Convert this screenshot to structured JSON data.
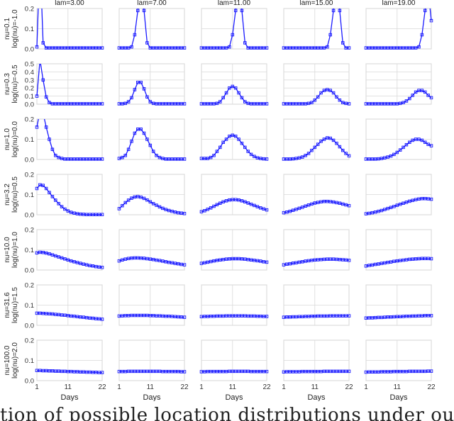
{
  "figure": {
    "caption_fragment": "tion of possible location distributions under our proposed treat",
    "xlabel": "Days",
    "xticks": [
      1,
      11,
      22
    ],
    "columns": [
      "lam=3.00",
      "lam=7.00",
      "lam=11.00",
      "lam=15.00",
      "lam=19.00"
    ],
    "rows": [
      {
        "nu_label": "nu=0.1",
        "lognu_label": "log(nu)=-1.0"
      },
      {
        "nu_label": "nu=0.3",
        "lognu_label": "log(nu)=-0.5"
      },
      {
        "nu_label": "nu=1.0",
        "lognu_label": "log(nu)=0.0"
      },
      {
        "nu_label": "nu=3.2",
        "lognu_label": "log(nu)=0.5"
      },
      {
        "nu_label": "nu=10.0",
        "lognu_label": "log(nu)=1.0"
      },
      {
        "nu_label": "nu=31.6",
        "lognu_label": "log(nu)=1.5"
      },
      {
        "nu_label": "nu=100.0",
        "lognu_label": "log(nu)=2.0"
      }
    ],
    "series_color": "#1a1aff",
    "grid_color": "#d9d9d9"
  },
  "chart_data": {
    "type": "line",
    "layout": "small multiples grid, 7 rows (nu) x 5 columns (lam)",
    "x": [
      1,
      2,
      3,
      4,
      5,
      6,
      7,
      8,
      9,
      10,
      11,
      12,
      13,
      14,
      15,
      16,
      17,
      18,
      19,
      20,
      21,
      22
    ],
    "xlim": [
      1,
      22
    ],
    "rows": [
      {
        "ylim": [
          0,
          0.2
        ],
        "yticks": [
          0.0,
          0.1,
          0.2
        ]
      },
      {
        "ylim": [
          0,
          0.5
        ],
        "yticks": [
          0.0,
          0.1,
          0.2,
          0.3,
          0.4,
          0.5
        ]
      },
      {
        "ylim": [
          0,
          0.2
        ],
        "yticks": [
          0.0,
          0.1,
          0.2
        ]
      },
      {
        "ylim": [
          0,
          0.2
        ],
        "yticks": [
          0.0,
          0.1,
          0.2
        ]
      },
      {
        "ylim": [
          0,
          0.2
        ],
        "yticks": [
          0.0,
          0.1,
          0.2
        ]
      },
      {
        "ylim": [
          0,
          0.2
        ],
        "yticks": [
          0.0,
          0.1,
          0.2
        ]
      },
      {
        "ylim": [
          0,
          0.2
        ],
        "yticks": [
          0.0,
          0.1,
          0.2
        ]
      }
    ],
    "panels": [
      [
        [
          0.01,
          0.45,
          0.03,
          0.005,
          0.005,
          0.005,
          0.005,
          0.005,
          0.005,
          0.005,
          0.005,
          0.005,
          0.005,
          0.005,
          0.005,
          0.005,
          0.005,
          0.005,
          0.005,
          0.005,
          0.005,
          0.005
        ],
        [
          0.005,
          0.005,
          0.005,
          0.005,
          0.01,
          0.07,
          0.19,
          0.35,
          0.19,
          0.03,
          0.005,
          0.005,
          0.005,
          0.005,
          0.005,
          0.005,
          0.005,
          0.005,
          0.005,
          0.005,
          0.005,
          0.005
        ],
        [
          0.005,
          0.005,
          0.005,
          0.005,
          0.005,
          0.005,
          0.005,
          0.005,
          0.005,
          0.01,
          0.07,
          0.19,
          0.35,
          0.19,
          0.03,
          0.005,
          0.005,
          0.005,
          0.005,
          0.005,
          0.005,
          0.005
        ],
        [
          0.005,
          0.005,
          0.005,
          0.005,
          0.005,
          0.005,
          0.005,
          0.005,
          0.005,
          0.005,
          0.005,
          0.005,
          0.005,
          0.005,
          0.01,
          0.07,
          0.19,
          0.35,
          0.19,
          0.03,
          0.005,
          0.005
        ],
        [
          0.005,
          0.005,
          0.005,
          0.005,
          0.005,
          0.005,
          0.005,
          0.005,
          0.005,
          0.005,
          0.005,
          0.005,
          0.005,
          0.005,
          0.005,
          0.005,
          0.005,
          0.01,
          0.07,
          0.19,
          0.29,
          0.14
        ]
      ],
      [
        [
          0.1,
          0.55,
          0.3,
          0.09,
          0.02,
          0.005,
          0.005,
          0.005,
          0.005,
          0.005,
          0.005,
          0.005,
          0.005,
          0.005,
          0.005,
          0.005,
          0.005,
          0.005,
          0.005,
          0.005,
          0.005,
          0.005
        ],
        [
          0.005,
          0.005,
          0.01,
          0.03,
          0.08,
          0.18,
          0.27,
          0.27,
          0.19,
          0.09,
          0.03,
          0.01,
          0.005,
          0.005,
          0.005,
          0.005,
          0.005,
          0.005,
          0.005,
          0.005,
          0.005,
          0.005
        ],
        [
          0.005,
          0.005,
          0.005,
          0.005,
          0.005,
          0.01,
          0.03,
          0.08,
          0.14,
          0.2,
          0.22,
          0.2,
          0.14,
          0.08,
          0.03,
          0.01,
          0.005,
          0.005,
          0.005,
          0.005,
          0.005,
          0.005
        ],
        [
          0.005,
          0.005,
          0.005,
          0.005,
          0.005,
          0.005,
          0.005,
          0.005,
          0.01,
          0.02,
          0.05,
          0.09,
          0.14,
          0.17,
          0.18,
          0.17,
          0.14,
          0.09,
          0.05,
          0.02,
          0.01,
          0.005
        ],
        [
          0.005,
          0.005,
          0.005,
          0.005,
          0.005,
          0.005,
          0.005,
          0.005,
          0.005,
          0.005,
          0.005,
          0.01,
          0.02,
          0.04,
          0.07,
          0.11,
          0.15,
          0.17,
          0.17,
          0.15,
          0.11,
          0.08
        ]
      ],
      [
        [
          0.16,
          0.24,
          0.23,
          0.16,
          0.1,
          0.05,
          0.02,
          0.01,
          0.005,
          0.002,
          0.002,
          0.002,
          0.002,
          0.002,
          0.002,
          0.002,
          0.002,
          0.002,
          0.002,
          0.002,
          0.002,
          0.002
        ],
        [
          0.005,
          0.01,
          0.02,
          0.05,
          0.09,
          0.13,
          0.15,
          0.15,
          0.13,
          0.1,
          0.07,
          0.04,
          0.02,
          0.01,
          0.005,
          0.002,
          0.002,
          0.002,
          0.002,
          0.002,
          0.002,
          0.002
        ],
        [
          0.005,
          0.005,
          0.005,
          0.01,
          0.02,
          0.04,
          0.06,
          0.085,
          0.1,
          0.115,
          0.12,
          0.115,
          0.1,
          0.08,
          0.06,
          0.04,
          0.025,
          0.015,
          0.008,
          0.005,
          0.003,
          0.002
        ],
        [
          0.002,
          0.002,
          0.002,
          0.003,
          0.005,
          0.008,
          0.012,
          0.02,
          0.03,
          0.045,
          0.06,
          0.075,
          0.09,
          0.1,
          0.107,
          0.105,
          0.095,
          0.08,
          0.063,
          0.045,
          0.03,
          0.018
        ],
        [
          0.002,
          0.002,
          0.002,
          0.002,
          0.003,
          0.005,
          0.008,
          0.012,
          0.017,
          0.025,
          0.035,
          0.047,
          0.06,
          0.073,
          0.085,
          0.095,
          0.1,
          0.1,
          0.095,
          0.085,
          0.075,
          0.068
        ]
      ],
      [
        [
          0.13,
          0.148,
          0.145,
          0.13,
          0.11,
          0.09,
          0.072,
          0.055,
          0.04,
          0.028,
          0.019,
          0.012,
          0.008,
          0.005,
          0.003,
          0.002,
          0.001,
          0.001,
          0.001,
          0.001,
          0.001,
          0.001
        ],
        [
          0.03,
          0.045,
          0.06,
          0.072,
          0.082,
          0.088,
          0.09,
          0.087,
          0.081,
          0.073,
          0.064,
          0.055,
          0.047,
          0.039,
          0.032,
          0.026,
          0.021,
          0.017,
          0.013,
          0.01,
          0.008,
          0.006
        ],
        [
          0.015,
          0.02,
          0.027,
          0.034,
          0.042,
          0.05,
          0.057,
          0.064,
          0.069,
          0.073,
          0.075,
          0.075,
          0.073,
          0.069,
          0.064,
          0.058,
          0.052,
          0.046,
          0.04,
          0.034,
          0.029,
          0.024
        ],
        [
          0.01,
          0.013,
          0.017,
          0.022,
          0.027,
          0.032,
          0.037,
          0.043,
          0.048,
          0.053,
          0.058,
          0.061,
          0.064,
          0.066,
          0.066,
          0.065,
          0.063,
          0.06,
          0.057,
          0.053,
          0.049,
          0.045
        ],
        [
          0.005,
          0.007,
          0.01,
          0.013,
          0.017,
          0.021,
          0.026,
          0.031,
          0.036,
          0.041,
          0.047,
          0.052,
          0.057,
          0.062,
          0.067,
          0.071,
          0.075,
          0.078,
          0.08,
          0.08,
          0.079,
          0.077
        ]
      ],
      [
        [
          0.085,
          0.088,
          0.087,
          0.084,
          0.08,
          0.075,
          0.07,
          0.065,
          0.06,
          0.055,
          0.05,
          0.045,
          0.041,
          0.037,
          0.033,
          0.029,
          0.026,
          0.022,
          0.02,
          0.017,
          0.015,
          0.013
        ],
        [
          0.045,
          0.05,
          0.054,
          0.057,
          0.059,
          0.06,
          0.06,
          0.059,
          0.058,
          0.056,
          0.054,
          0.052,
          0.049,
          0.047,
          0.044,
          0.041,
          0.038,
          0.036,
          0.033,
          0.031,
          0.028,
          0.026
        ],
        [
          0.033,
          0.036,
          0.039,
          0.042,
          0.045,
          0.048,
          0.05,
          0.052,
          0.054,
          0.055,
          0.056,
          0.056,
          0.056,
          0.055,
          0.054,
          0.052,
          0.05,
          0.048,
          0.046,
          0.044,
          0.041,
          0.039
        ],
        [
          0.026,
          0.029,
          0.031,
          0.034,
          0.036,
          0.039,
          0.041,
          0.044,
          0.046,
          0.048,
          0.05,
          0.051,
          0.052,
          0.053,
          0.054,
          0.054,
          0.054,
          0.053,
          0.052,
          0.051,
          0.05,
          0.048
        ],
        [
          0.02,
          0.023,
          0.025,
          0.028,
          0.03,
          0.033,
          0.035,
          0.038,
          0.04,
          0.043,
          0.045,
          0.047,
          0.049,
          0.051,
          0.053,
          0.054,
          0.055,
          0.056,
          0.057,
          0.057,
          0.057,
          0.056
        ]
      ],
      [
        [
          0.06,
          0.06,
          0.059,
          0.058,
          0.057,
          0.056,
          0.054,
          0.053,
          0.051,
          0.05,
          0.048,
          0.046,
          0.045,
          0.043,
          0.041,
          0.04,
          0.038,
          0.036,
          0.035,
          0.033,
          0.032,
          0.03
        ],
        [
          0.046,
          0.047,
          0.048,
          0.048,
          0.049,
          0.049,
          0.049,
          0.049,
          0.049,
          0.049,
          0.048,
          0.048,
          0.047,
          0.047,
          0.046,
          0.045,
          0.045,
          0.044,
          0.043,
          0.042,
          0.041,
          0.04
        ],
        [
          0.043,
          0.044,
          0.044,
          0.045,
          0.045,
          0.046,
          0.046,
          0.046,
          0.047,
          0.047,
          0.047,
          0.047,
          0.047,
          0.047,
          0.047,
          0.046,
          0.046,
          0.046,
          0.045,
          0.045,
          0.044,
          0.044
        ],
        [
          0.04,
          0.041,
          0.041,
          0.042,
          0.042,
          0.043,
          0.043,
          0.044,
          0.044,
          0.045,
          0.045,
          0.046,
          0.046,
          0.046,
          0.046,
          0.047,
          0.047,
          0.047,
          0.047,
          0.047,
          0.047,
          0.047
        ],
        [
          0.036,
          0.037,
          0.037,
          0.038,
          0.039,
          0.039,
          0.04,
          0.041,
          0.041,
          0.042,
          0.043,
          0.043,
          0.044,
          0.045,
          0.045,
          0.046,
          0.046,
          0.047,
          0.047,
          0.048,
          0.048,
          0.048
        ]
      ],
      [
        [
          0.05,
          0.05,
          0.049,
          0.049,
          0.048,
          0.048,
          0.047,
          0.047,
          0.046,
          0.046,
          0.045,
          0.045,
          0.044,
          0.044,
          0.043,
          0.043,
          0.042,
          0.042,
          0.041,
          0.041,
          0.04,
          0.04
        ],
        [
          0.045,
          0.045,
          0.045,
          0.046,
          0.046,
          0.046,
          0.046,
          0.046,
          0.046,
          0.046,
          0.046,
          0.046,
          0.046,
          0.046,
          0.045,
          0.045,
          0.045,
          0.045,
          0.045,
          0.045,
          0.044,
          0.044
        ],
        [
          0.044,
          0.044,
          0.045,
          0.045,
          0.045,
          0.045,
          0.045,
          0.045,
          0.045,
          0.046,
          0.046,
          0.046,
          0.046,
          0.046,
          0.046,
          0.046,
          0.045,
          0.045,
          0.045,
          0.045,
          0.045,
          0.045
        ],
        [
          0.043,
          0.044,
          0.044,
          0.044,
          0.044,
          0.044,
          0.045,
          0.045,
          0.045,
          0.045,
          0.045,
          0.045,
          0.045,
          0.046,
          0.046,
          0.046,
          0.046,
          0.046,
          0.046,
          0.046,
          0.046,
          0.046
        ],
        [
          0.042,
          0.043,
          0.043,
          0.043,
          0.043,
          0.044,
          0.044,
          0.044,
          0.044,
          0.045,
          0.045,
          0.045,
          0.045,
          0.045,
          0.046,
          0.046,
          0.046,
          0.046,
          0.046,
          0.046,
          0.047,
          0.047
        ]
      ]
    ]
  }
}
